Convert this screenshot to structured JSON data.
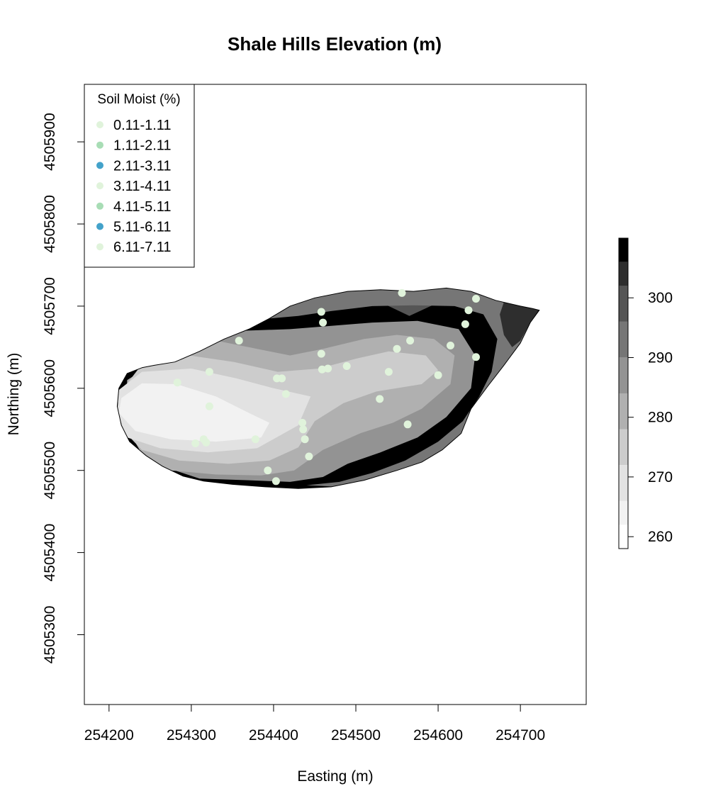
{
  "chart_data": {
    "type": "heatmap",
    "title": "Shale Hills Elevation (m)",
    "xlabel": "Easting (m)",
    "ylabel": "Northing (m)",
    "xlim": [
      254170,
      254780
    ],
    "ylim": [
      4505215,
      4505970
    ],
    "xticks": [
      254200,
      254300,
      254400,
      254500,
      254600,
      254700
    ],
    "yticks": [
      4505300,
      4505400,
      4505500,
      4505600,
      4505700,
      4505800,
      4505900
    ],
    "grid": false,
    "colorbar": {
      "label": "",
      "range": [
        258,
        310
      ],
      "ticks": [
        260,
        270,
        280,
        290,
        300
      ],
      "bands": [
        {
          "from": 258,
          "to": 262,
          "color": "#ffffff"
        },
        {
          "from": 262,
          "to": 266,
          "color": "#f2f2f2"
        },
        {
          "from": 266,
          "to": 272,
          "color": "#e2e2e2"
        },
        {
          "from": 272,
          "to": 278,
          "color": "#cccccc"
        },
        {
          "from": 278,
          "to": 284,
          "color": "#b0b0b0"
        },
        {
          "from": 284,
          "to": 290,
          "color": "#939393"
        },
        {
          "from": 290,
          "to": 296,
          "color": "#767676"
        },
        {
          "from": 296,
          "to": 302,
          "color": "#555555"
        },
        {
          "from": 302,
          "to": 306,
          "color": "#2e2e2e"
        },
        {
          "from": 306,
          "to": 310,
          "color": "#000000"
        }
      ]
    },
    "watershed_boundary": [
      [
        254240,
        4505625
      ],
      [
        254255,
        4505628
      ],
      [
        254280,
        4505632
      ],
      [
        254310,
        4505645
      ],
      [
        254340,
        4505660
      ],
      [
        254370,
        4505672
      ],
      [
        254395,
        4505685
      ],
      [
        254420,
        4505700
      ],
      [
        254450,
        4505710
      ],
      [
        254490,
        4505718
      ],
      [
        254530,
        4505720
      ],
      [
        254570,
        4505718
      ],
      [
        254610,
        4505722
      ],
      [
        254640,
        4505718
      ],
      [
        254670,
        4505707
      ],
      [
        254700,
        4505700
      ],
      [
        254715,
        4505697
      ],
      [
        254723,
        4505695
      ],
      [
        254712,
        4505680
      ],
      [
        254700,
        4505655
      ],
      [
        254680,
        4505628
      ],
      [
        254660,
        4505602
      ],
      [
        254640,
        4505575
      ],
      [
        254628,
        4505545
      ],
      [
        254605,
        4505525
      ],
      [
        254580,
        4505510
      ],
      [
        254550,
        4505500
      ],
      [
        254510,
        4505488
      ],
      [
        254470,
        4505480
      ],
      [
        254430,
        4505478
      ],
      [
        254390,
        4505480
      ],
      [
        254350,
        4505483
      ],
      [
        254315,
        4505487
      ],
      [
        254290,
        4505493
      ],
      [
        254265,
        4505505
      ],
      [
        254245,
        4505518
      ],
      [
        254225,
        4505535
      ],
      [
        254215,
        4505555
      ],
      [
        254210,
        4505578
      ],
      [
        254212,
        4505600
      ],
      [
        254222,
        4505618
      ]
    ],
    "elevation_zones": [
      {
        "level": 262,
        "polygon": [
          [
            254215,
            4505588
          ],
          [
            254240,
            4505606
          ],
          [
            254282,
            4505605
          ],
          [
            254330,
            4505590
          ],
          [
            254370,
            4505570
          ],
          [
            254395,
            4505558
          ],
          [
            254385,
            4505540
          ],
          [
            254330,
            4505535
          ],
          [
            254275,
            4505538
          ],
          [
            254232,
            4505548
          ],
          [
            254212,
            4505570
          ]
        ]
      },
      {
        "level": 266,
        "polygon": [
          [
            254212,
            4505598
          ],
          [
            254240,
            4505620
          ],
          [
            254300,
            4505624
          ],
          [
            254355,
            4505612
          ],
          [
            254400,
            4505600
          ],
          [
            254445,
            4505590
          ],
          [
            254430,
            4505555
          ],
          [
            254380,
            4505527
          ],
          [
            254320,
            4505522
          ],
          [
            254262,
            4505527
          ],
          [
            254222,
            4505540
          ],
          [
            254210,
            4505570
          ]
        ]
      },
      {
        "level": 272,
        "polygon": [
          [
            254236,
            4505624
          ],
          [
            254290,
            4505641
          ],
          [
            254352,
            4505632
          ],
          [
            254405,
            4505620
          ],
          [
            254455,
            4505624
          ],
          [
            254500,
            4505636
          ],
          [
            254540,
            4505645
          ],
          [
            254585,
            4505640
          ],
          [
            254600,
            4505622
          ],
          [
            254580,
            4505605
          ],
          [
            254525,
            4505596
          ],
          [
            254485,
            4505582
          ],
          [
            254450,
            4505560
          ],
          [
            254430,
            4505528
          ],
          [
            254395,
            4505512
          ],
          [
            254345,
            4505508
          ],
          [
            254285,
            4505512
          ],
          [
            254240,
            4505525
          ],
          [
            254216,
            4505550
          ],
          [
            254210,
            4505590
          ]
        ]
      },
      {
        "level": 278,
        "polygon": [
          [
            254260,
            4505634
          ],
          [
            254320,
            4505660
          ],
          [
            254370,
            4505650
          ],
          [
            254420,
            4505640
          ],
          [
            254460,
            4505648
          ],
          [
            254510,
            4505660
          ],
          [
            254550,
            4505665
          ],
          [
            254595,
            4505660
          ],
          [
            254620,
            4505640
          ],
          [
            254615,
            4505605
          ],
          [
            254580,
            4505575
          ],
          [
            254545,
            4505558
          ],
          [
            254505,
            4505545
          ],
          [
            254460,
            4505525
          ],
          [
            254425,
            4505500
          ],
          [
            254385,
            4505494
          ],
          [
            254330,
            4505495
          ],
          [
            254275,
            4505500
          ],
          [
            254240,
            4505520
          ],
          [
            254220,
            4505555
          ],
          [
            254222,
            4505610
          ]
        ]
      },
      {
        "level": 284,
        "polygon": [
          [
            254300,
            4505648
          ],
          [
            254360,
            4505670
          ],
          [
            254420,
            4505672
          ],
          [
            254470,
            4505676
          ],
          [
            254520,
            4505680
          ],
          [
            254575,
            4505682
          ],
          [
            254625,
            4505672
          ],
          [
            254645,
            4505640
          ],
          [
            254640,
            4505600
          ],
          [
            254610,
            4505565
          ],
          [
            254575,
            4505540
          ],
          [
            254530,
            4505522
          ],
          [
            254490,
            4505508
          ],
          [
            254460,
            4505492
          ],
          [
            254420,
            4505486
          ],
          [
            254370,
            4505488
          ],
          [
            254310,
            4505490
          ],
          [
            254265,
            4505505
          ],
          [
            254240,
            4505520
          ]
        ]
      },
      {
        "level": 290,
        "polygon": [
          [
            254395,
            4505685
          ],
          [
            254430,
            4505688
          ],
          [
            254470,
            4505694
          ],
          [
            254520,
            4505700
          ],
          [
            254570,
            4505701
          ],
          [
            254620,
            4505700
          ],
          [
            254655,
            4505690
          ],
          [
            254672,
            4505660
          ],
          [
            254665,
            4505620
          ],
          [
            254650,
            4505590
          ],
          [
            254630,
            4505560
          ],
          [
            254600,
            4505535
          ],
          [
            254560,
            4505512
          ],
          [
            254520,
            4505497
          ],
          [
            254480,
            4505486
          ],
          [
            254440,
            4505482
          ],
          [
            254480,
            4505480
          ],
          [
            254520,
            4505486
          ],
          [
            254560,
            4505498
          ],
          [
            254600,
            4505520
          ],
          [
            254628,
            4505545
          ],
          [
            254640,
            4505575
          ],
          [
            254660,
            4505602
          ],
          [
            254680,
            4505628
          ],
          [
            254700,
            4505655
          ],
          [
            254712,
            4505680
          ],
          [
            254700,
            4505700
          ],
          [
            254670,
            4505707
          ],
          [
            254640,
            4505718
          ],
          [
            254610,
            4505722
          ],
          [
            254570,
            4505718
          ],
          [
            254530,
            4505720
          ],
          [
            254490,
            4505718
          ],
          [
            254450,
            4505710
          ],
          [
            254420,
            4505700
          ]
        ]
      },
      {
        "level": 296,
        "polygon": [
          [
            254440,
            4505705
          ],
          [
            254470,
            4505712
          ],
          [
            254510,
            4505714
          ],
          [
            254540,
            4505700
          ],
          [
            254565,
            4505688
          ],
          [
            254595,
            4505702
          ],
          [
            254625,
            4505710
          ],
          [
            254660,
            4505706
          ],
          [
            254690,
            4505690
          ],
          [
            254700,
            4505650
          ],
          [
            254690,
            4505615
          ],
          [
            254670,
            4505590
          ],
          [
            254655,
            4505570
          ],
          [
            254625,
            4505545
          ],
          [
            254600,
            4505520
          ],
          [
            254560,
            4505500
          ],
          [
            254510,
            4505488
          ],
          [
            254470,
            4505480
          ],
          [
            254495,
            4505480
          ],
          [
            254540,
            4505495
          ],
          [
            254580,
            4505510
          ],
          [
            254605,
            4505525
          ],
          [
            254628,
            4505545
          ],
          [
            254640,
            4505575
          ],
          [
            254660,
            4505602
          ],
          [
            254680,
            4505628
          ],
          [
            254700,
            4505655
          ],
          [
            254712,
            4505680
          ],
          [
            254715,
            4505697
          ],
          [
            254700,
            4505700
          ],
          [
            254670,
            4505707
          ],
          [
            254640,
            4505718
          ],
          [
            254610,
            4505722
          ],
          [
            254570,
            4505718
          ],
          [
            254530,
            4505720
          ],
          [
            254490,
            4505718
          ],
          [
            254455,
            4505712
          ]
        ]
      },
      {
        "level": 302,
        "polygon": [
          [
            254680,
            4505705
          ],
          [
            254700,
            4505700
          ],
          [
            254715,
            4505697
          ],
          [
            254722,
            4505695
          ],
          [
            254712,
            4505680
          ],
          [
            254700,
            4505658
          ],
          [
            254690,
            4505650
          ],
          [
            254680,
            4505665
          ],
          [
            254675,
            4505690
          ]
        ]
      },
      {
        "level": 306,
        "polygon": [
          [
            254702,
            4505700
          ],
          [
            254712,
            4505700
          ],
          [
            254723,
            4505695
          ],
          [
            254715,
            4505683
          ],
          [
            254705,
            4505680
          ],
          [
            254700,
            4505690
          ]
        ]
      }
    ],
    "points": [
      {
        "x": 254283,
        "y": 4505607,
        "class": 0
      },
      {
        "x": 254305,
        "y": 4505533,
        "class": 0
      },
      {
        "x": 254315,
        "y": 4505538,
        "class": 0
      },
      {
        "x": 254318,
        "y": 4505534,
        "class": 6
      },
      {
        "x": 254322,
        "y": 4505578,
        "class": 3
      },
      {
        "x": 254322,
        "y": 4505620,
        "class": 0
      },
      {
        "x": 254358,
        "y": 4505658,
        "class": 0
      },
      {
        "x": 254378,
        "y": 4505538,
        "class": 0
      },
      {
        "x": 254393,
        "y": 4505500,
        "class": 0
      },
      {
        "x": 254403,
        "y": 4505487,
        "class": 0
      },
      {
        "x": 254404,
        "y": 4505612,
        "class": 6
      },
      {
        "x": 254410,
        "y": 4505612,
        "class": 3
      },
      {
        "x": 254415,
        "y": 4505593,
        "class": 0
      },
      {
        "x": 254435,
        "y": 4505558,
        "class": 6
      },
      {
        "x": 254436,
        "y": 4505550,
        "class": 0
      },
      {
        "x": 254438,
        "y": 4505538,
        "class": 0
      },
      {
        "x": 254443,
        "y": 4505517,
        "class": 0
      },
      {
        "x": 254458,
        "y": 4505693,
        "class": 6
      },
      {
        "x": 254460,
        "y": 4505680,
        "class": 6
      },
      {
        "x": 254458,
        "y": 4505642,
        "class": 0
      },
      {
        "x": 254459,
        "y": 4505623,
        "class": 6
      },
      {
        "x": 254466,
        "y": 4505624,
        "class": 3
      },
      {
        "x": 254489,
        "y": 4505627,
        "class": 6
      },
      {
        "x": 254529,
        "y": 4505587,
        "class": 0
      },
      {
        "x": 254540,
        "y": 4505620,
        "class": 6
      },
      {
        "x": 254550,
        "y": 4505648,
        "class": 0
      },
      {
        "x": 254556,
        "y": 4505716,
        "class": 0
      },
      {
        "x": 254563,
        "y": 4505556,
        "class": 0
      },
      {
        "x": 254566,
        "y": 4505658,
        "class": 0
      },
      {
        "x": 254600,
        "y": 4505616,
        "class": 0
      },
      {
        "x": 254615,
        "y": 4505652,
        "class": 0
      },
      {
        "x": 254633,
        "y": 4505678,
        "class": 0
      },
      {
        "x": 254637,
        "y": 4505695,
        "class": 0
      },
      {
        "x": 254646,
        "y": 4505709,
        "class": 0
      },
      {
        "x": 254646,
        "y": 4505638,
        "class": 0
      }
    ],
    "legend": {
      "title": "Soil Moist (%)",
      "position": "top-left",
      "items": [
        {
          "label": "0.11-1.11",
          "color": "#e0f3db"
        },
        {
          "label": "1.11-2.11",
          "color": "#a8ddb5"
        },
        {
          "label": "2.11-3.11",
          "color": "#43a2ca"
        },
        {
          "label": "3.11-4.11",
          "color": "#e0f3db"
        },
        {
          "label": "4.11-5.11",
          "color": "#a8ddb5"
        },
        {
          "label": "5.11-6.11",
          "color": "#43a2ca"
        },
        {
          "label": "6.11-7.11",
          "color": "#e0f3db"
        }
      ]
    }
  }
}
